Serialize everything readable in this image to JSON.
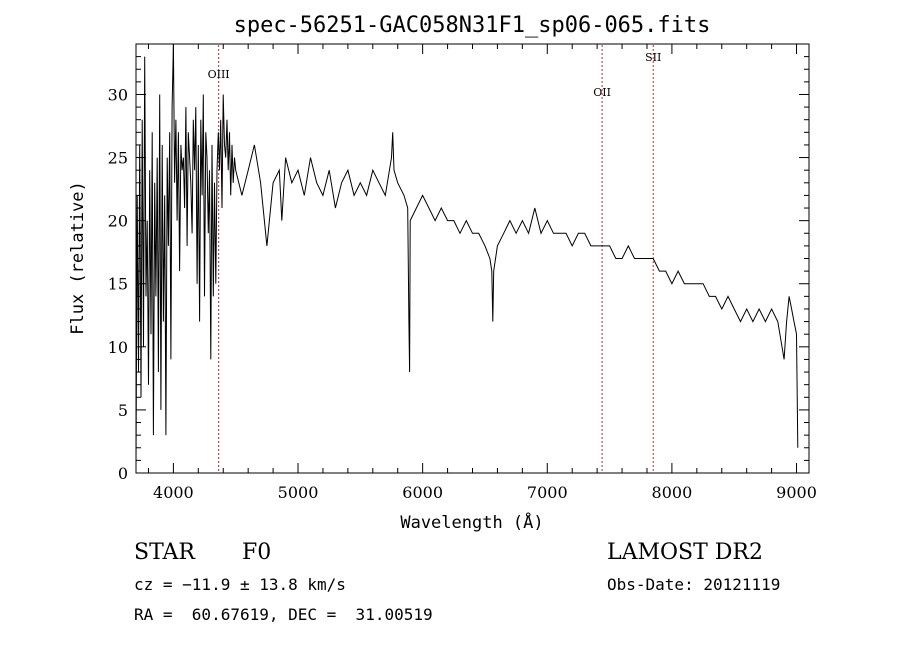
{
  "chart_data": {
    "type": "line",
    "title": "spec-56251-GAC058N31F1_sp06-065.fits",
    "xlabel": "Wavelength (Å)",
    "ylabel": "Flux (relative)",
    "xlim": [
      3700,
      9100
    ],
    "ylim": [
      0,
      34
    ],
    "xticks": [
      4000,
      5000,
      6000,
      7000,
      8000,
      9000
    ],
    "yticks": [
      0,
      5,
      10,
      15,
      20,
      25,
      30
    ],
    "grid": false,
    "series": [
      {
        "name": "spectrum",
        "x": [
          3700,
          3710,
          3720,
          3730,
          3740,
          3750,
          3760,
          3770,
          3780,
          3790,
          3800,
          3810,
          3820,
          3830,
          3840,
          3850,
          3860,
          3870,
          3880,
          3890,
          3900,
          3910,
          3920,
          3930,
          3940,
          3950,
          3960,
          3970,
          3980,
          3990,
          4000,
          4010,
          4020,
          4030,
          4040,
          4050,
          4060,
          4070,
          4080,
          4090,
          4100,
          4110,
          4120,
          4130,
          4140,
          4150,
          4160,
          4170,
          4180,
          4190,
          4200,
          4210,
          4220,
          4230,
          4240,
          4250,
          4260,
          4270,
          4280,
          4290,
          4300,
          4310,
          4320,
          4330,
          4340,
          4350,
          4360,
          4370,
          4380,
          4390,
          4400,
          4410,
          4420,
          4430,
          4440,
          4450,
          4460,
          4470,
          4480,
          4490,
          4500,
          4550,
          4600,
          4650,
          4700,
          4750,
          4800,
          4850,
          4860,
          4870,
          4900,
          4950,
          5000,
          5050,
          5100,
          5150,
          5200,
          5250,
          5300,
          5350,
          5400,
          5450,
          5500,
          5550,
          5600,
          5650,
          5700,
          5750,
          5760,
          5770,
          5800,
          5850,
          5880,
          5890,
          5895,
          5900,
          5950,
          6000,
          6050,
          6100,
          6150,
          6200,
          6250,
          6300,
          6350,
          6400,
          6450,
          6500,
          6540,
          6555,
          6563,
          6570,
          6600,
          6650,
          6700,
          6750,
          6800,
          6850,
          6900,
          6950,
          7000,
          7050,
          7100,
          7150,
          7200,
          7250,
          7300,
          7350,
          7400,
          7450,
          7500,
          7550,
          7600,
          7650,
          7700,
          7750,
          7800,
          7850,
          7900,
          7950,
          8000,
          8050,
          8100,
          8150,
          8200,
          8250,
          8300,
          8350,
          8400,
          8450,
          8500,
          8550,
          8600,
          8650,
          8700,
          8750,
          8800,
          8850,
          8900,
          8920,
          8940,
          8960,
          8980,
          9000,
          9010
        ],
        "values": [
          0.5,
          22,
          8,
          26,
          6,
          28,
          10,
          33,
          14,
          20,
          7,
          24,
          11,
          27,
          3,
          23,
          14,
          25,
          8,
          30,
          5,
          26,
          12,
          22,
          3,
          25,
          18,
          27,
          9,
          29,
          34,
          23,
          28,
          20,
          27,
          16,
          26,
          24,
          25,
          21,
          29,
          18,
          27,
          25,
          23,
          19,
          28,
          24,
          29,
          15,
          26,
          12,
          28,
          22,
          30,
          14,
          27,
          25,
          19,
          24,
          9,
          26,
          14,
          23,
          15,
          24,
          27,
          24,
          28,
          21,
          30,
          26,
          25,
          28,
          24,
          27,
          22,
          26,
          23,
          25,
          24,
          22,
          24,
          26,
          23,
          18,
          23,
          24,
          22,
          20,
          25,
          23,
          24,
          22,
          25,
          23,
          22,
          24,
          21,
          23,
          24,
          22,
          23,
          22,
          24,
          23,
          22,
          25,
          27,
          24,
          23,
          22,
          21,
          12,
          8,
          20,
          21,
          22,
          21,
          20,
          21,
          20,
          20,
          19,
          20,
          19,
          19,
          18,
          17,
          16,
          12,
          16,
          18,
          19,
          20,
          19,
          20,
          19,
          21,
          19,
          20,
          19,
          19,
          19,
          18,
          19,
          19,
          18,
          18,
          18,
          18,
          17,
          17,
          18,
          17,
          17,
          17,
          17,
          16,
          16,
          15,
          16,
          15,
          15,
          15,
          15,
          14,
          14,
          13,
          14,
          13,
          12,
          13,
          12,
          13,
          12,
          13,
          12,
          9,
          12,
          14,
          13,
          12,
          11,
          2
        ]
      }
    ],
    "lines": [
      {
        "label": "OIII",
        "x": 4363
      },
      {
        "label": "OII",
        "x": 7440
      },
      {
        "label": "SII",
        "x": 7850
      }
    ]
  },
  "info": {
    "object_class": "STAR",
    "subclass": "F0",
    "survey": "LAMOST DR2",
    "cz": "cz = −11.9 ± 13.8 km/s",
    "obs_date": "Obs-Date: 20121119",
    "coords": "RA =  60.67619, DEC =  31.00519"
  }
}
